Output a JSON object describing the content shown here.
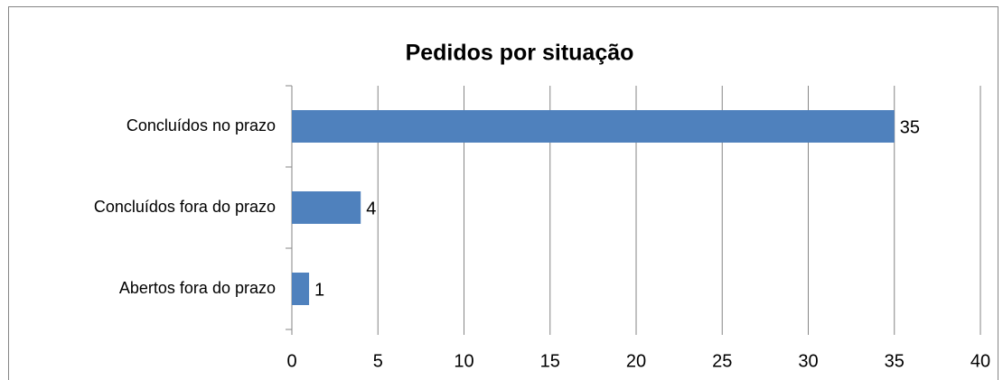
{
  "chart_data": {
    "type": "barh",
    "title": "Pedidos por situação",
    "categories": [
      "Concluídos no prazo",
      "Concluídos fora do prazo",
      "Abertos fora do prazo"
    ],
    "values": [
      35,
      4,
      1
    ],
    "color": "#4f81bd",
    "xlim": [
      0,
      40
    ],
    "xticks": [
      0,
      5,
      10,
      15,
      20,
      25,
      30,
      35,
      40
    ],
    "grid": true,
    "data_labels": true
  }
}
